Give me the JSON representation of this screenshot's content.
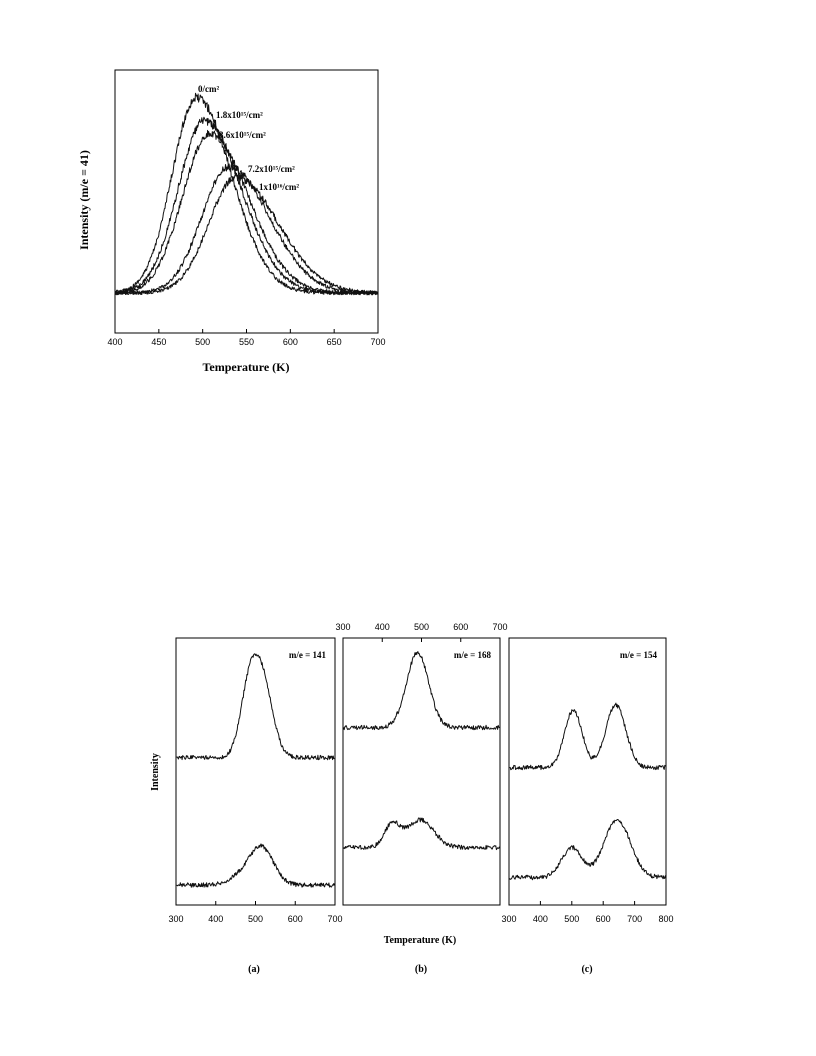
{
  "chart_data": [
    {
      "type": "line",
      "ylabel": "Intensity (m/e = 41)",
      "xlabel": "Temperature (K)",
      "xlim": [
        400,
        700
      ],
      "x_ticks": [
        "400",
        "450",
        "500",
        "550",
        "600",
        "650",
        "700"
      ],
      "series": [
        {
          "name": "0/cm²",
          "peak_x": 493,
          "height": 0.93,
          "sigma_left": 28,
          "sigma_right": 40
        },
        {
          "name": "1.8x10¹⁵/cm²",
          "peak_x": 502,
          "height": 0.82,
          "sigma_left": 30,
          "sigma_right": 42
        },
        {
          "name": "3.6x10¹⁵/cm²",
          "peak_x": 508,
          "height": 0.76,
          "sigma_left": 31,
          "sigma_right": 44
        },
        {
          "name": "7.2x10¹⁵/cm²",
          "peak_x": 530,
          "height": 0.6,
          "sigma_left": 31,
          "sigma_right": 46
        },
        {
          "name": "1x10¹⁶/cm²",
          "peak_x": 538,
          "height": 0.55,
          "sigma_left": 31,
          "sigma_right": 48
        }
      ]
    },
    {
      "type": "line",
      "panel": "(a)",
      "annotation": "m/e = 141",
      "ylabel": "Intensity",
      "xlim": [
        300,
        700
      ],
      "x_ticks": [
        "300",
        "400",
        "500",
        "600",
        "700"
      ],
      "traces": [
        {
          "baseline": 0.57,
          "peaks": [
            {
              "x": 482,
              "h": 0.22,
              "s": 22
            },
            {
              "x": 516,
              "h": 0.31,
              "s": 26
            }
          ]
        },
        {
          "baseline": 0.06,
          "peaks": [
            {
              "x": 460,
              "h": 0.03,
              "s": 30
            },
            {
              "x": 515,
              "h": 0.15,
              "s": 30
            }
          ]
        }
      ]
    },
    {
      "type": "line",
      "panel": "(b)",
      "annotation": "m/e = 168",
      "xlim": [
        300,
        700
      ],
      "x_ticks": [
        "300",
        "400",
        "500",
        "600",
        "700"
      ],
      "traces": [
        {
          "baseline": 0.69,
          "peaks": [
            {
              "x": 490,
              "h": 0.3,
              "s": 28
            }
          ]
        },
        {
          "baseline": 0.21,
          "peaks": [
            {
              "x": 425,
              "h": 0.09,
              "s": 20
            },
            {
              "x": 497,
              "h": 0.11,
              "s": 34
            }
          ]
        }
      ]
    },
    {
      "type": "line",
      "panel": "(c)",
      "annotation": "m/e = 154",
      "xlim": [
        300,
        800
      ],
      "x_ticks": [
        "300",
        "400",
        "500",
        "600",
        "700",
        "800"
      ],
      "traces": [
        {
          "baseline": 0.53,
          "peaks": [
            {
              "x": 505,
              "h": 0.23,
              "s": 28
            },
            {
              "x": 640,
              "h": 0.25,
              "s": 32
            }
          ]
        },
        {
          "baseline": 0.09,
          "peaks": [
            {
              "x": 500,
              "h": 0.12,
              "s": 32
            },
            {
              "x": 645,
              "h": 0.23,
              "s": 42
            }
          ]
        }
      ]
    }
  ],
  "shared_xlabel": "Temperature (K)",
  "panel_labels": [
    "(a)",
    "(b)",
    "(c)"
  ]
}
